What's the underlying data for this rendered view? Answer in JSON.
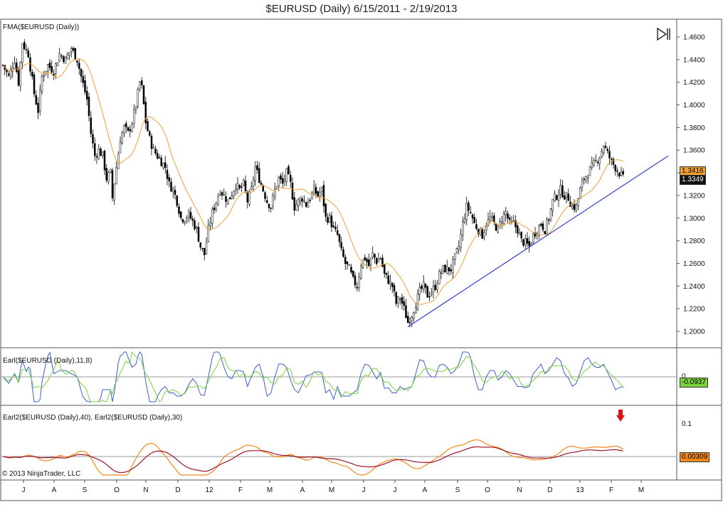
{
  "title": "$EURUSD (Daily)  6/15/2011 - 2/19/2013",
  "copyright": "© 2013 NinjaTrader, LLC",
  "icons": {
    "play_end": "skip-to-end-icon",
    "signal_arrow": "down-arrow-icon"
  },
  "chart_data": [
    {
      "type": "candlestick",
      "panel": "price",
      "label": "FMA($EURUSD (Daily))",
      "ylim": [
        1.19,
        1.47
      ],
      "yticks": [
        "1.2000",
        "1.2200",
        "1.2400",
        "1.2600",
        "1.2800",
        "1.3000",
        "1.3200",
        "1.3400",
        "1.3600",
        "1.3800",
        "1.4000",
        "1.4200",
        "1.4400",
        "1.4600"
      ],
      "x_labels": [
        "J",
        "A",
        "S",
        "O",
        "N",
        "D",
        "12",
        "F",
        "M",
        "A",
        "M",
        "J",
        "J",
        "A",
        "S",
        "O",
        "N",
        "D",
        "13",
        "F",
        "M"
      ],
      "close_path": [
        [
          0,
          1.435
        ],
        [
          3,
          1.425
        ],
        [
          6,
          1.44
        ],
        [
          8,
          1.42
        ],
        [
          10,
          1.455
        ],
        [
          13,
          1.445
        ],
        [
          16,
          1.41
        ],
        [
          18,
          1.395
        ],
        [
          20,
          1.425
        ],
        [
          23,
          1.435
        ],
        [
          26,
          1.43
        ],
        [
          29,
          1.445
        ],
        [
          32,
          1.44
        ],
        [
          35,
          1.45
        ],
        [
          38,
          1.44
        ],
        [
          40,
          1.425
        ],
        [
          43,
          1.405
        ],
        [
          45,
          1.375
        ],
        [
          47,
          1.355
        ],
        [
          49,
          1.36
        ],
        [
          51,
          1.355
        ],
        [
          53,
          1.335
        ],
        [
          55,
          1.34
        ],
        [
          56,
          1.318
        ],
        [
          58,
          1.345
        ],
        [
          60,
          1.37
        ],
        [
          62,
          1.38
        ],
        [
          64,
          1.375
        ],
        [
          66,
          1.385
        ],
        [
          68,
          1.4
        ],
        [
          70,
          1.42
        ],
        [
          71,
          1.415
        ],
        [
          73,
          1.385
        ],
        [
          75,
          1.37
        ],
        [
          77,
          1.36
        ],
        [
          79,
          1.355
        ],
        [
          81,
          1.35
        ],
        [
          83,
          1.345
        ],
        [
          85,
          1.33
        ],
        [
          87,
          1.325
        ],
        [
          89,
          1.315
        ],
        [
          91,
          1.3
        ],
        [
          93,
          1.3
        ],
        [
          95,
          1.303
        ],
        [
          97,
          1.297
        ],
        [
          99,
          1.29
        ],
        [
          101,
          1.275
        ],
        [
          103,
          1.268
        ],
        [
          105,
          1.29
        ],
        [
          107,
          1.305
        ],
        [
          109,
          1.315
        ],
        [
          111,
          1.325
        ],
        [
          113,
          1.32
        ],
        [
          115,
          1.315
        ],
        [
          117,
          1.322
        ],
        [
          119,
          1.33
        ],
        [
          121,
          1.325
        ],
        [
          123,
          1.33
        ],
        [
          125,
          1.315
        ],
        [
          127,
          1.325
        ],
        [
          129,
          1.345
        ],
        [
          131,
          1.335
        ],
        [
          133,
          1.325
        ],
        [
          135,
          1.315
        ],
        [
          137,
          1.31
        ],
        [
          139,
          1.325
        ],
        [
          141,
          1.335
        ],
        [
          143,
          1.33
        ],
        [
          145,
          1.34
        ],
        [
          147,
          1.33
        ],
        [
          149,
          1.31
        ],
        [
          151,
          1.315
        ],
        [
          153,
          1.318
        ],
        [
          155,
          1.312
        ],
        [
          157,
          1.318
        ],
        [
          159,
          1.325
        ],
        [
          161,
          1.32
        ],
        [
          163,
          1.325
        ],
        [
          165,
          1.3
        ],
        [
          167,
          1.3
        ],
        [
          169,
          1.29
        ],
        [
          171,
          1.285
        ],
        [
          173,
          1.27
        ],
        [
          175,
          1.26
        ],
        [
          177,
          1.255
        ],
        [
          179,
          1.245
        ],
        [
          181,
          1.24
        ],
        [
          183,
          1.26
        ],
        [
          185,
          1.265
        ],
        [
          187,
          1.258
        ],
        [
          189,
          1.268
        ],
        [
          191,
          1.262
        ],
        [
          193,
          1.265
        ],
        [
          195,
          1.25
        ],
        [
          197,
          1.245
        ],
        [
          199,
          1.24
        ],
        [
          201,
          1.225
        ],
        [
          203,
          1.23
        ],
        [
          205,
          1.22
        ],
        [
          207,
          1.208
        ],
        [
          209,
          1.215
        ],
        [
          211,
          1.225
        ],
        [
          213,
          1.235
        ],
        [
          215,
          1.24
        ],
        [
          217,
          1.232
        ],
        [
          219,
          1.235
        ],
        [
          221,
          1.24
        ],
        [
          223,
          1.25
        ],
        [
          225,
          1.255
        ],
        [
          227,
          1.255
        ],
        [
          229,
          1.255
        ],
        [
          231,
          1.265
        ],
        [
          233,
          1.275
        ],
        [
          235,
          1.295
        ],
        [
          237,
          1.31
        ],
        [
          239,
          1.305
        ],
        [
          241,
          1.295
        ],
        [
          243,
          1.29
        ],
        [
          245,
          1.285
        ],
        [
          247,
          1.295
        ],
        [
          249,
          1.3
        ],
        [
          251,
          1.295
        ],
        [
          253,
          1.29
        ],
        [
          255,
          1.3
        ],
        [
          257,
          1.305
        ],
        [
          259,
          1.295
        ],
        [
          261,
          1.295
        ],
        [
          263,
          1.29
        ],
        [
          265,
          1.28
        ],
        [
          267,
          1.278
        ],
        [
          269,
          1.275
        ],
        [
          271,
          1.285
        ],
        [
          273,
          1.29
        ],
        [
          275,
          1.295
        ],
        [
          277,
          1.29
        ],
        [
          279,
          1.3
        ],
        [
          281,
          1.315
        ],
        [
          283,
          1.32
        ],
        [
          285,
          1.325
        ],
        [
          287,
          1.32
        ],
        [
          289,
          1.318
        ],
        [
          291,
          1.31
        ],
        [
          293,
          1.31
        ],
        [
          295,
          1.325
        ],
        [
          297,
          1.335
        ],
        [
          299,
          1.34
        ],
        [
          301,
          1.345
        ],
        [
          303,
          1.35
        ],
        [
          305,
          1.355
        ],
        [
          307,
          1.365
        ],
        [
          309,
          1.357
        ],
        [
          311,
          1.35
        ],
        [
          313,
          1.345
        ],
        [
          315,
          1.34
        ],
        [
          317,
          1.335
        ]
      ],
      "moving_average_color": "#f0a030",
      "trendline": {
        "from": [
          207,
          1.204
        ],
        "to": [
          340,
          1.355
        ],
        "color": "#2f3fcf"
      },
      "last_price_badges": [
        {
          "value": "1.3416",
          "color": "#f0a030"
        },
        {
          "value": "1.3349",
          "color": "#111111"
        }
      ],
      "candle_up_color": "#ffffff",
      "candle_down_color": "#000000"
    },
    {
      "type": "line",
      "panel": "oscillator-1",
      "label": "Earl($EURUSD (Daily),11,8)",
      "series": [
        {
          "color": "#3a5fd0"
        },
        {
          "color": "#7bd23a"
        }
      ],
      "zero_tick": "0",
      "badge": {
        "value": "-0.0937",
        "color": "#7bd23a"
      }
    },
    {
      "type": "line",
      "panel": "oscillator-2",
      "label": "Earl2($EURUSD (Daily),40), Earl2($EURUSD (Daily),30)",
      "series": [
        {
          "color": "#f08a1a"
        },
        {
          "color": "#a0142a"
        }
      ],
      "yticks": [
        "0.1"
      ],
      "badge": {
        "value": "0.00309",
        "color": "#f08a1a"
      },
      "signal": {
        "type": "down-arrow",
        "color": "#dd1111"
      }
    }
  ]
}
